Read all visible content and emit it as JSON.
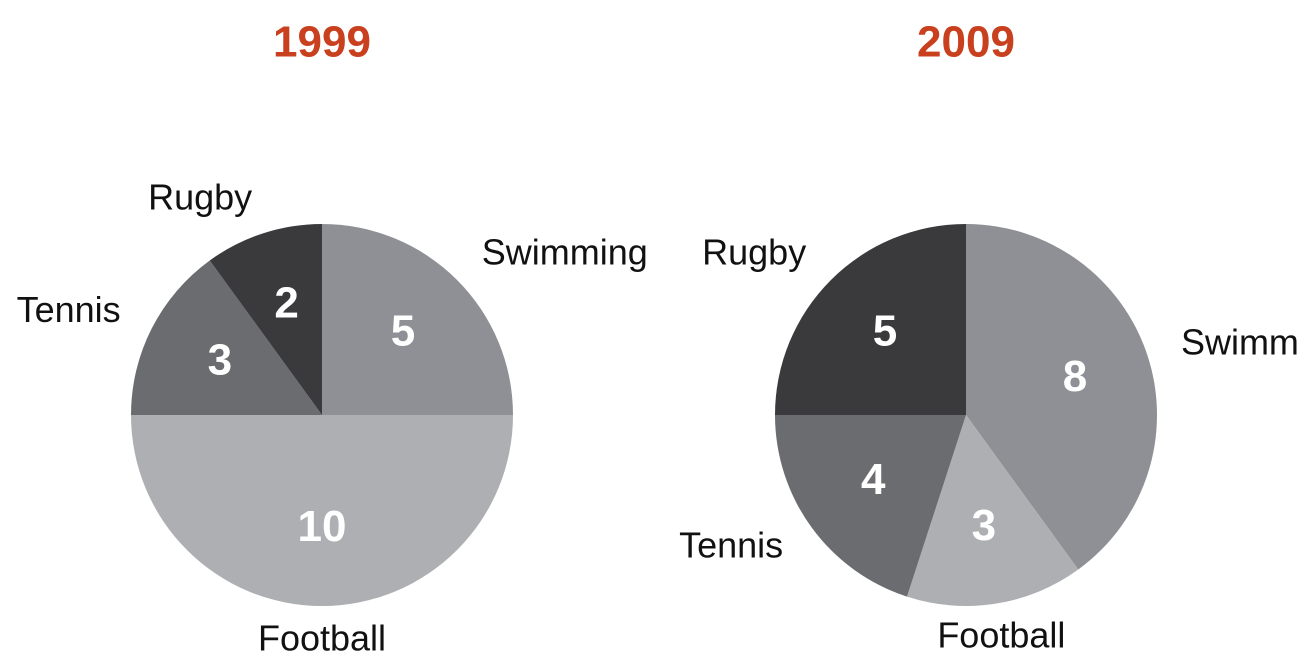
{
  "chart_data": [
    {
      "type": "pie",
      "title": "1999",
      "categories": [
        "Swimming",
        "Football",
        "Tennis",
        "Rugby"
      ],
      "values": [
        5,
        10,
        3,
        2
      ],
      "colors": [
        "#8e9095",
        "#aeafb2",
        "#6b6c70",
        "#3a3a3c"
      ]
    },
    {
      "type": "pie",
      "title": "2009",
      "categories": [
        "Swimming",
        "Football",
        "Tennis",
        "Rugby"
      ],
      "values": [
        8,
        3,
        4,
        5
      ],
      "colors": [
        "#8e9095",
        "#aeafb2",
        "#6b6c70",
        "#3a3a3c"
      ]
    }
  ]
}
